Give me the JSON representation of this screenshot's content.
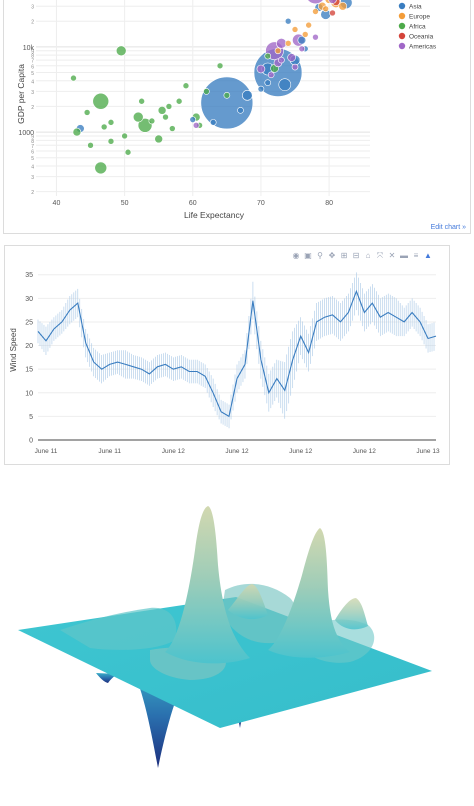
{
  "chart_data": [
    {
      "type": "scatter",
      "subtype": "bubble",
      "xlabel": "Life Expectancy",
      "ylabel": "GDP per Capita",
      "x_ticks": [
        "40",
        "50",
        "60",
        "70",
        "80"
      ],
      "y_ticks_major": [
        "1000",
        "10k"
      ],
      "y_scale": "log",
      "xlim": [
        37,
        86
      ],
      "ylim_log10": [
        2.25,
        4.55
      ],
      "grid": true,
      "legend_position": "top-right",
      "link_label": "Edit chart »",
      "series": [
        {
          "name": "Asia",
          "color": "#3a7dc0",
          "points": [
            {
              "x": 65,
              "y": 2200,
              "r": 26
            },
            {
              "x": 72.5,
              "y": 5000,
              "r": 24
            },
            {
              "x": 71,
              "y": 5500,
              "r": 6
            },
            {
              "x": 68,
              "y": 2700,
              "r": 5
            },
            {
              "x": 43.5,
              "y": 1100,
              "r": 4
            },
            {
              "x": 60,
              "y": 1400,
              "r": 3
            },
            {
              "x": 75,
              "y": 7000,
              "r": 5
            },
            {
              "x": 73.5,
              "y": 3600,
              "r": 6
            },
            {
              "x": 76,
              "y": 12000,
              "r": 4
            },
            {
              "x": 79.5,
              "y": 24000,
              "r": 5
            },
            {
              "x": 82.5,
              "y": 33000,
              "r": 6
            },
            {
              "x": 78.5,
              "y": 29000,
              "r": 4
            },
            {
              "x": 74,
              "y": 20000,
              "r": 3
            },
            {
              "x": 71,
              "y": 3800,
              "r": 3
            },
            {
              "x": 67,
              "y": 1800,
              "r": 3
            },
            {
              "x": 63,
              "y": 1300,
              "r": 3
            },
            {
              "x": 70,
              "y": 3200,
              "r": 3
            },
            {
              "x": 76.5,
              "y": 9500,
              "r": 3
            }
          ]
        },
        {
          "name": "Europe",
          "color": "#f39c38",
          "points": [
            {
              "x": 80,
              "y": 36000,
              "r": 4
            },
            {
              "x": 81,
              "y": 33000,
              "r": 5
            },
            {
              "x": 79,
              "y": 30000,
              "r": 4
            },
            {
              "x": 80.5,
              "y": 38000,
              "r": 4
            },
            {
              "x": 78,
              "y": 26000,
              "r": 3
            },
            {
              "x": 81.5,
              "y": 40000,
              "r": 3
            },
            {
              "x": 75,
              "y": 16000,
              "r": 3
            },
            {
              "x": 76.5,
              "y": 14000,
              "r": 3
            },
            {
              "x": 74,
              "y": 11000,
              "r": 3
            },
            {
              "x": 72.5,
              "y": 9000,
              "r": 3
            },
            {
              "x": 79.5,
              "y": 28000,
              "r": 3
            },
            {
              "x": 82,
              "y": 30000,
              "r": 4
            },
            {
              "x": 77,
              "y": 18000,
              "r": 3
            }
          ]
        },
        {
          "name": "Africa",
          "color": "#4daa4a",
          "points": [
            {
              "x": 46.5,
              "y": 2300,
              "r": 8
            },
            {
              "x": 49.5,
              "y": 9000,
              "r": 5
            },
            {
              "x": 53,
              "y": 1200,
              "r": 7
            },
            {
              "x": 46.5,
              "y": 380,
              "r": 6
            },
            {
              "x": 43,
              "y": 1000,
              "r": 4
            },
            {
              "x": 52,
              "y": 1500,
              "r": 5
            },
            {
              "x": 55.5,
              "y": 1800,
              "r": 4
            },
            {
              "x": 58,
              "y": 2300,
              "r": 3
            },
            {
              "x": 60.5,
              "y": 1500,
              "r": 4
            },
            {
              "x": 57,
              "y": 1100,
              "r": 3
            },
            {
              "x": 50,
              "y": 900,
              "r": 3
            },
            {
              "x": 48,
              "y": 1300,
              "r": 3
            },
            {
              "x": 44.5,
              "y": 1700,
              "r": 3
            },
            {
              "x": 42.5,
              "y": 4300,
              "r": 3
            },
            {
              "x": 45,
              "y": 700,
              "r": 3
            },
            {
              "x": 50.5,
              "y": 580,
              "r": 3
            },
            {
              "x": 55,
              "y": 830,
              "r": 4
            },
            {
              "x": 52.5,
              "y": 2300,
              "r": 3
            },
            {
              "x": 59,
              "y": 3500,
              "r": 3
            },
            {
              "x": 62,
              "y": 3000,
              "r": 3
            },
            {
              "x": 64,
              "y": 6000,
              "r": 3
            },
            {
              "x": 71,
              "y": 7800,
              "r": 3
            },
            {
              "x": 72,
              "y": 5600,
              "r": 4
            },
            {
              "x": 56,
              "y": 1500,
              "r": 3
            },
            {
              "x": 48,
              "y": 780,
              "r": 3
            },
            {
              "x": 54,
              "y": 1350,
              "r": 3
            },
            {
              "x": 47,
              "y": 1150,
              "r": 3
            },
            {
              "x": 61,
              "y": 1200,
              "r": 3
            },
            {
              "x": 65,
              "y": 2700,
              "r": 3
            },
            {
              "x": 56.5,
              "y": 2000,
              "r": 3
            }
          ]
        },
        {
          "name": "Oceania",
          "color": "#d4443a",
          "points": [
            {
              "x": 81,
              "y": 34000,
              "r": 4
            },
            {
              "x": 80.5,
              "y": 25000,
              "r": 3
            }
          ]
        },
        {
          "name": "Americas",
          "color": "#a067c7",
          "points": [
            {
              "x": 78,
              "y": 42000,
              "r": 10
            },
            {
              "x": 72,
              "y": 9000,
              "r": 9
            },
            {
              "x": 75.5,
              "y": 12000,
              "r": 6
            },
            {
              "x": 73,
              "y": 11000,
              "r": 5
            },
            {
              "x": 74.5,
              "y": 7500,
              "r": 4
            },
            {
              "x": 72.5,
              "y": 6500,
              "r": 4
            },
            {
              "x": 70,
              "y": 5500,
              "r": 4
            },
            {
              "x": 78,
              "y": 13000,
              "r": 3
            },
            {
              "x": 73,
              "y": 7000,
              "r": 3
            },
            {
              "x": 71.5,
              "y": 4700,
              "r": 3
            },
            {
              "x": 76,
              "y": 9500,
              "r": 3
            },
            {
              "x": 75,
              "y": 5800,
              "r": 3
            },
            {
              "x": 80.5,
              "y": 36000,
              "r": 4
            },
            {
              "x": 60.5,
              "y": 1200,
              "r": 3
            }
          ]
        }
      ]
    },
    {
      "type": "line",
      "subtype": "line with error bars",
      "xlabel": "",
      "ylabel": "Wind Speed",
      "x_ticks": [
        "June 11",
        "June 11",
        "June 12",
        "June 12",
        "June 12",
        "June 12",
        "June 13"
      ],
      "y_ticks": [
        0,
        5,
        10,
        15,
        20,
        25,
        30,
        35
      ],
      "ylim": [
        0,
        36
      ],
      "grid": true,
      "line_color": "#3a7dc0",
      "error_color": "#a9c8e6",
      "x_index_range": [
        0,
        100
      ],
      "series": [
        {
          "name": "",
          "x": [
            0,
            2,
            4,
            6,
            8,
            10,
            12,
            14,
            16,
            18,
            20,
            22,
            24,
            26,
            28,
            30,
            32,
            34,
            36,
            38,
            40,
            42,
            44,
            46,
            48,
            50,
            52,
            54,
            56,
            58,
            60,
            62,
            64,
            66,
            68,
            70,
            72,
            74,
            76,
            78,
            80,
            82,
            84,
            86,
            88,
            90,
            92,
            94,
            96,
            98,
            100
          ],
          "y": [
            23,
            21,
            23.5,
            25,
            27.5,
            29,
            20.5,
            16.5,
            15,
            16,
            16.5,
            16,
            15.5,
            15,
            14,
            15.5,
            16,
            15,
            15.5,
            14.5,
            14.5,
            13.5,
            10,
            6,
            5,
            13,
            16,
            29.5,
            17,
            10,
            13,
            10.5,
            17,
            22,
            18.5,
            25,
            26,
            26.5,
            25,
            27,
            31.5,
            27,
            29,
            26,
            27,
            26,
            25,
            27,
            25,
            21.5,
            22
          ],
          "err": [
            2.5,
            3,
            2.5,
            2.5,
            3,
            3,
            3,
            3,
            3,
            2.5,
            2.5,
            3,
            2.5,
            2.5,
            2.5,
            2.5,
            2.5,
            2.5,
            2.5,
            2.5,
            2.5,
            2.5,
            3,
            2.5,
            2.5,
            3,
            3,
            4,
            4,
            4,
            4,
            6,
            6,
            4,
            4,
            4,
            4,
            4,
            4,
            4,
            4,
            4,
            4,
            4,
            4,
            4,
            3,
            3,
            3,
            3,
            3
          ]
        }
      ],
      "toolbar_icons": [
        "camera-icon",
        "save-icon",
        "zoom-icon",
        "pan-icon",
        "zoom-in-icon",
        "zoom-out-icon",
        "home-icon",
        "autoscale-icon",
        "spike-icon",
        "hover-closest-icon",
        "hover-compare-icon",
        "plotly-logo-icon"
      ]
    },
    {
      "type": "surface",
      "subtype": "3d surface",
      "colors": {
        "high": "#c9d2a8",
        "mid": "#6fc8cc",
        "base": "#3cc4cf",
        "low": "#233a8c"
      },
      "peaks": [
        {
          "x": 0.08,
          "y": 0.05,
          "z": 1.0
        },
        {
          "x": 0.46,
          "y": 0.12,
          "z": 0.78
        },
        {
          "x": 0.15,
          "y": 0.35,
          "z": 0.35
        },
        {
          "x": 0.7,
          "y": -0.05,
          "z": 0.25
        },
        {
          "x": -0.5,
          "y": -0.2,
          "z": -0.95
        },
        {
          "x": 0.25,
          "y": -0.45,
          "z": -0.5
        }
      ]
    }
  ]
}
